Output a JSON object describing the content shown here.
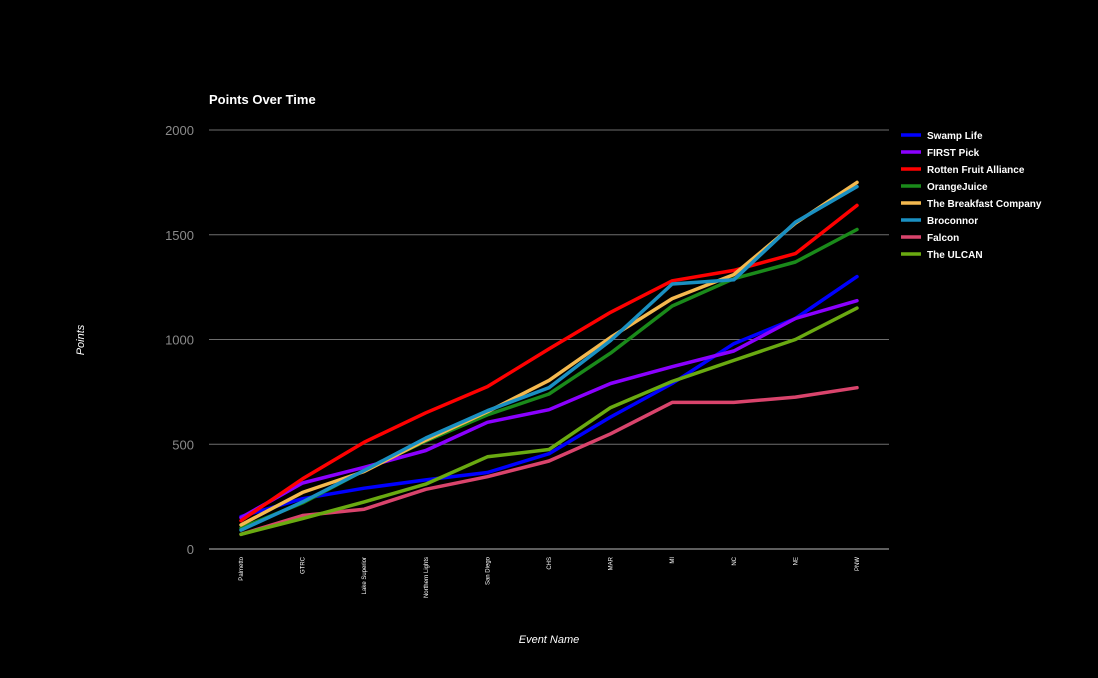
{
  "chart_data": {
    "type": "line",
    "title": "Points Over Time",
    "xlabel": "Event Name",
    "ylabel": "Points",
    "ylim": [
      0,
      2000
    ],
    "yticks": [
      "0",
      "500",
      "1000",
      "1500",
      "2000"
    ],
    "grid": true,
    "legend_position": "right",
    "categories": [
      "Palmetto",
      "GTRC",
      "Lake Superior",
      "Northern Lights",
      "San Diego",
      "CHS",
      "MAR",
      "MI",
      "NC",
      "NE",
      "PNW"
    ],
    "series": [
      {
        "name": "Swamp Life",
        "color": "#0000ff",
        "values": [
          155,
          240,
          290,
          330,
          365,
          455,
          630,
          790,
          980,
          1100,
          1300
        ]
      },
      {
        "name": "FIRST Pick",
        "color": "#8b00ff",
        "values": [
          150,
          315,
          390,
          470,
          605,
          665,
          790,
          870,
          945,
          1100,
          1185
        ]
      },
      {
        "name": "Rotten Fruit Alliance",
        "color": "#ff0000",
        "values": [
          135,
          335,
          510,
          650,
          775,
          955,
          1130,
          1280,
          1330,
          1410,
          1640
        ]
      },
      {
        "name": "OrangeJuice",
        "color": "#1a8a1a",
        "values": [
          100,
          220,
          375,
          515,
          640,
          740,
          935,
          1160,
          1290,
          1370,
          1525
        ]
      },
      {
        "name": "The Breakfast Company",
        "color": "#f4b94f",
        "values": [
          115,
          270,
          370,
          520,
          655,
          805,
          1010,
          1195,
          1310,
          1555,
          1750
        ]
      },
      {
        "name": "Broconnor",
        "color": "#1a90c2",
        "values": [
          90,
          225,
          375,
          530,
          660,
          770,
          995,
          1265,
          1285,
          1560,
          1730
        ]
      },
      {
        "name": "Falcon",
        "color": "#d9446c",
        "values": [
          70,
          160,
          190,
          285,
          345,
          420,
          550,
          700,
          700,
          725,
          770
        ]
      },
      {
        "name": "The ULCAN",
        "color": "#6aaa11",
        "values": [
          70,
          145,
          225,
          310,
          440,
          475,
          675,
          800,
          900,
          1000,
          1150
        ]
      }
    ]
  }
}
